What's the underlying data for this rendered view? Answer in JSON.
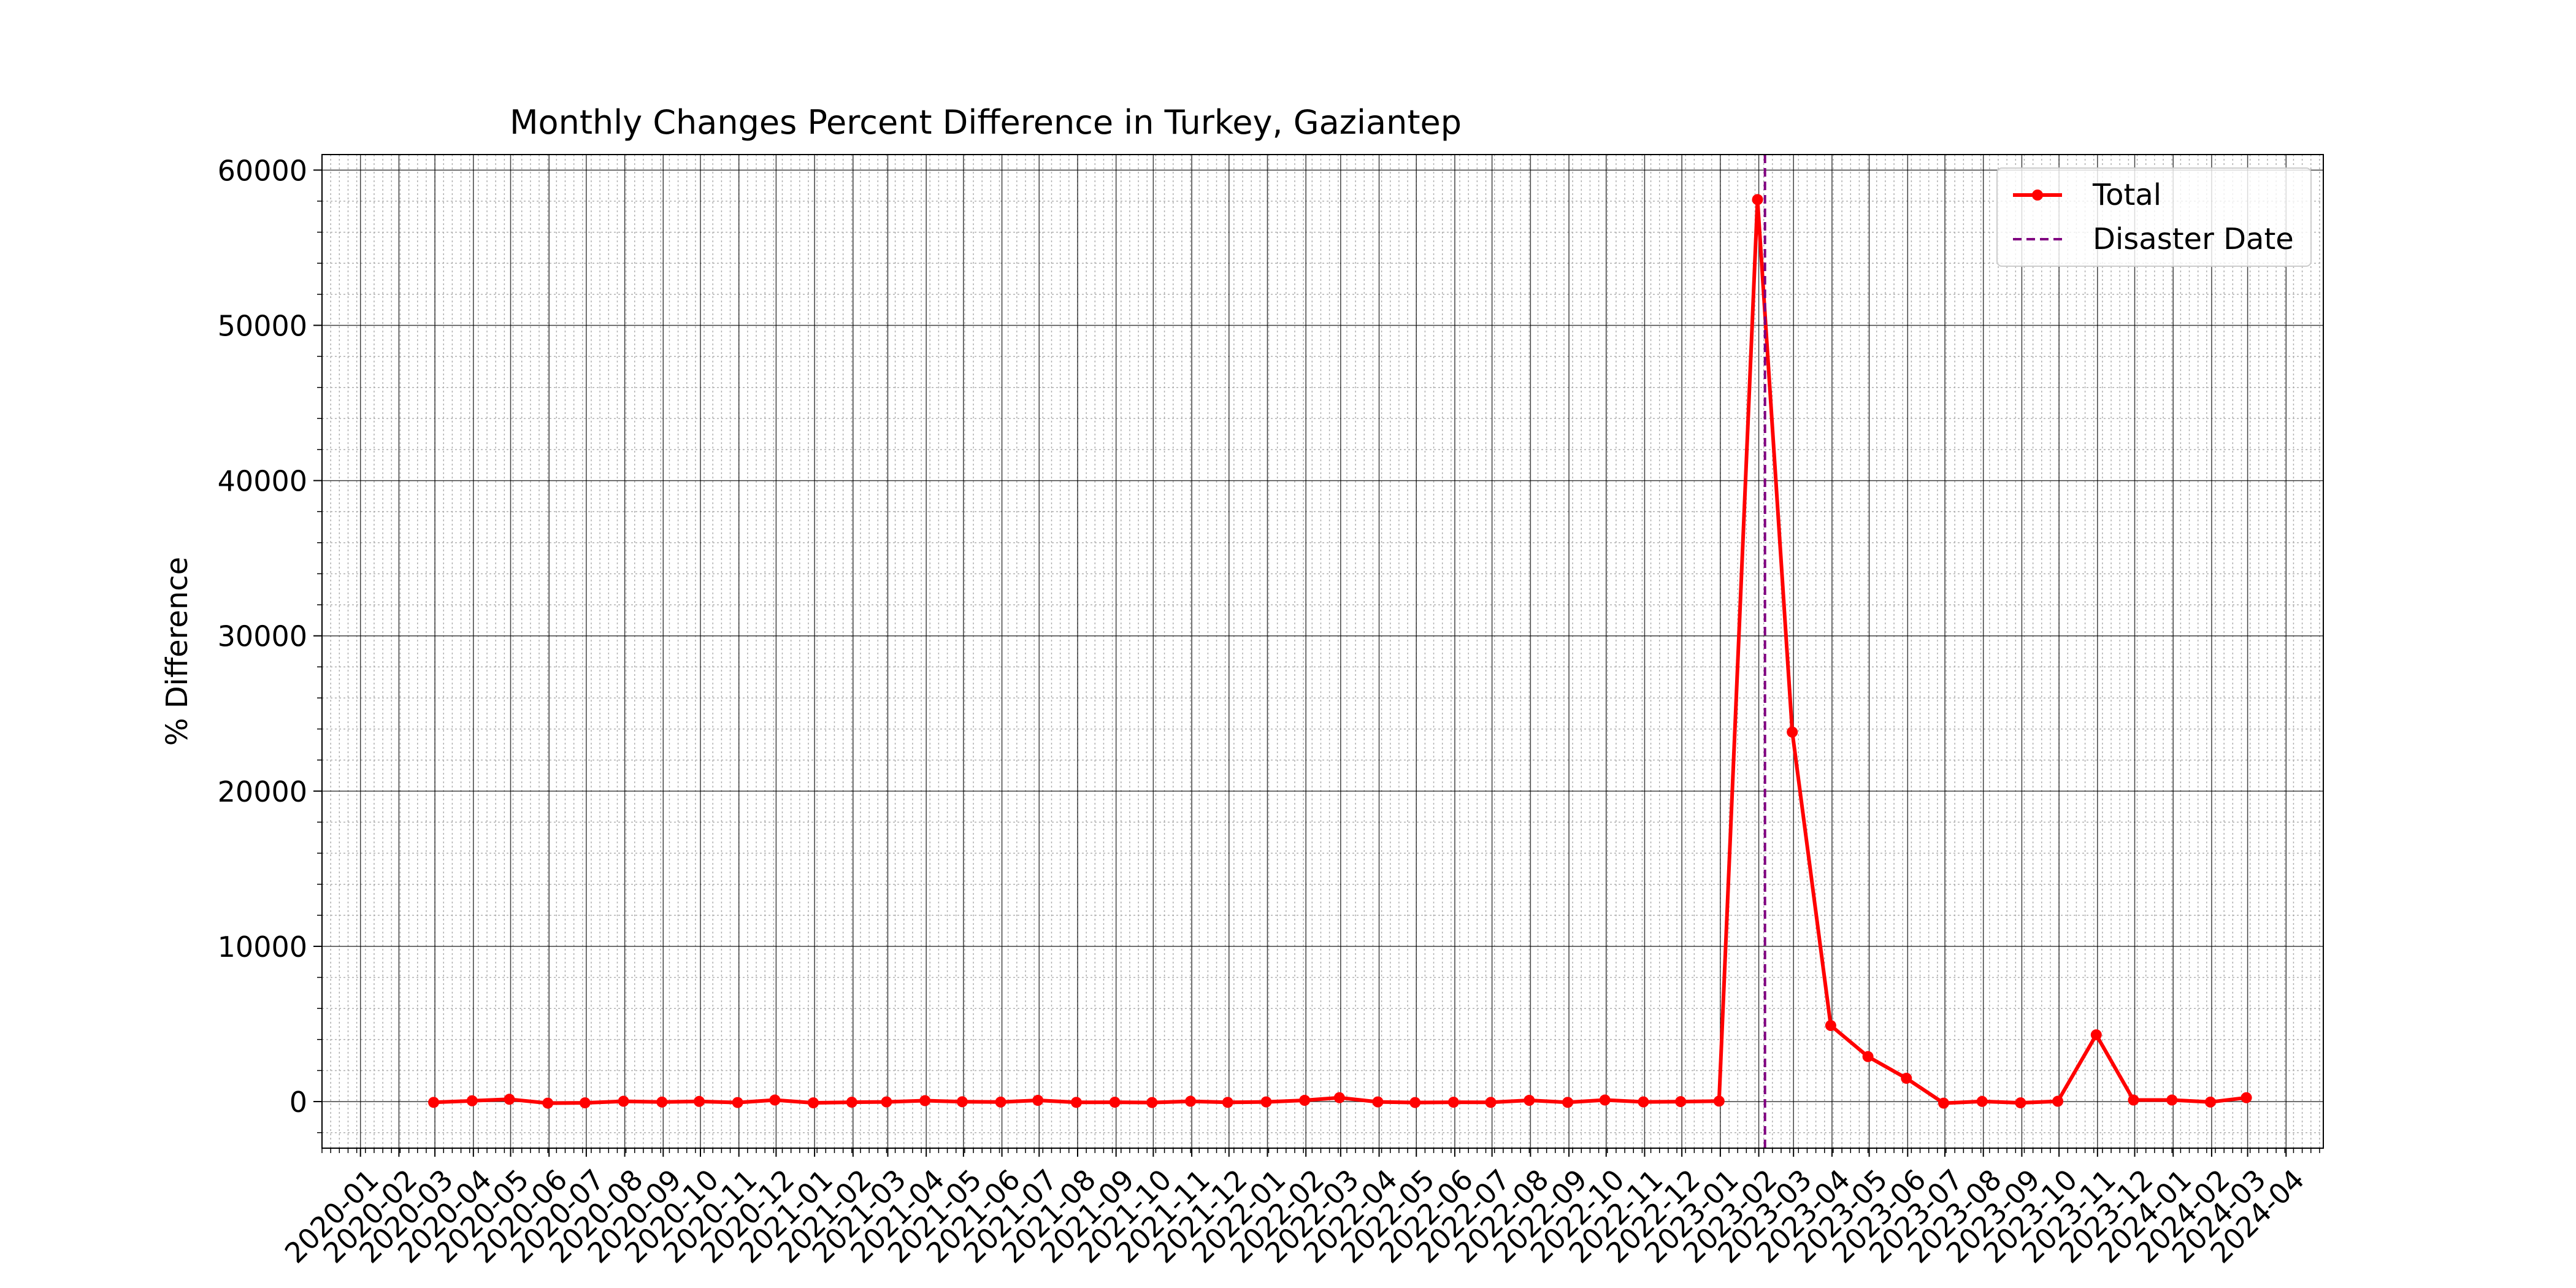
{
  "chart_data": {
    "type": "line",
    "title": "Monthly Changes Percent Difference in Turkey, Gaziantep",
    "xlabel": "",
    "ylabel": "% Difference",
    "xlim": [
      "2020-01",
      "2024-04"
    ],
    "ylim": [
      -3000,
      61000
    ],
    "grid": true,
    "minor_grid": true,
    "legend_position": "top-right",
    "x_tick_labels": [
      "2020-01",
      "2020-02",
      "2020-03",
      "2020-04",
      "2020-05",
      "2020-06",
      "2020-07",
      "2020-08",
      "2020-09",
      "2020-10",
      "2020-11",
      "2020-12",
      "2021-01",
      "2021-02",
      "2021-03",
      "2021-04",
      "2021-05",
      "2021-06",
      "2021-07",
      "2021-08",
      "2021-09",
      "2021-10",
      "2021-11",
      "2021-12",
      "2022-01",
      "2022-02",
      "2022-03",
      "2022-04",
      "2022-05",
      "2022-06",
      "2022-07",
      "2022-08",
      "2022-09",
      "2022-10",
      "2022-11",
      "2022-12",
      "2023-01",
      "2023-02",
      "2023-03",
      "2023-04",
      "2023-05",
      "2023-06",
      "2023-07",
      "2023-08",
      "2023-09",
      "2023-10",
      "2023-11",
      "2023-12",
      "2024-01",
      "2024-02",
      "2024-03",
      "2024-04"
    ],
    "y_ticks": [
      0,
      10000,
      20000,
      30000,
      40000,
      50000,
      60000
    ],
    "series": [
      {
        "name": "Total",
        "color": "#ff0000",
        "x": [
          "2020-02-29",
          "2020-03-31",
          "2020-04-30",
          "2020-05-31",
          "2020-06-30",
          "2020-07-31",
          "2020-08-31",
          "2020-09-30",
          "2020-10-31",
          "2020-11-30",
          "2020-12-31",
          "2021-01-31",
          "2021-02-28",
          "2021-03-31",
          "2021-04-30",
          "2021-05-31",
          "2021-06-30",
          "2021-07-31",
          "2021-08-31",
          "2021-09-30",
          "2021-10-31",
          "2021-11-30",
          "2021-12-31",
          "2022-01-31",
          "2022-02-28",
          "2022-03-31",
          "2022-04-30",
          "2022-05-31",
          "2022-06-30",
          "2022-07-31",
          "2022-08-31",
          "2022-09-30",
          "2022-10-31",
          "2022-11-30",
          "2022-12-31",
          "2023-01-31",
          "2023-02-28",
          "2023-03-31",
          "2023-04-30",
          "2023-05-31",
          "2023-06-30",
          "2023-07-31",
          "2023-08-31",
          "2023-09-30",
          "2023-10-31",
          "2023-11-30",
          "2023-12-31",
          "2024-01-31",
          "2024-02-29"
        ],
        "y": [
          -50,
          50,
          150,
          -100,
          -80,
          20,
          -30,
          10,
          -60,
          100,
          -80,
          -40,
          -20,
          60,
          -10,
          -30,
          80,
          -50,
          -40,
          -60,
          20,
          -50,
          -20,
          80,
          250,
          -20,
          -60,
          -40,
          -50,
          80,
          -50,
          100,
          -20,
          0,
          30,
          58100,
          23800,
          4900,
          2900,
          1500,
          -100,
          10,
          -80,
          20,
          4300,
          100,
          100,
          -30,
          250
        ]
      }
    ],
    "vlines": [
      {
        "name": "Disaster Date",
        "color": "#800080",
        "style": "dashed",
        "x": "2023-02-06"
      }
    ]
  }
}
